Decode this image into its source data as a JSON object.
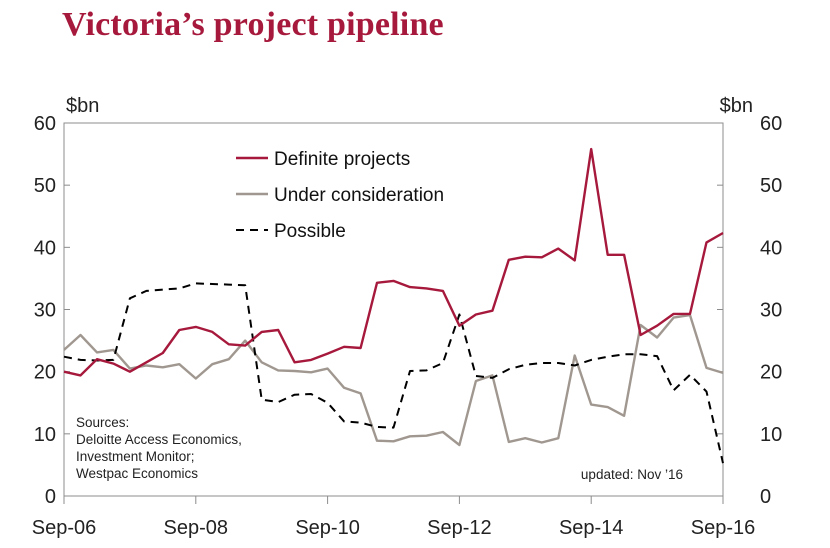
{
  "title": "Victoria’s project pipeline",
  "colors": {
    "definite": "#a6193c",
    "under": "#a09890",
    "possible": "#000000",
    "title": "#a6193c"
  },
  "chart_data": {
    "type": "line",
    "ylabel_left": "$bn",
    "ylabel_right": "$bn",
    "ylim": [
      0,
      60
    ],
    "yticks": [
      0,
      10,
      20,
      30,
      40,
      50,
      60
    ],
    "xlim": [
      0,
      40
    ],
    "xticks": [
      {
        "label": "Sep-06",
        "x": 0
      },
      {
        "label": "Sep-08",
        "x": 8
      },
      {
        "label": "Sep-10",
        "x": 16
      },
      {
        "label": "Sep-12",
        "x": 24
      },
      {
        "label": "Sep-14",
        "x": 32
      },
      {
        "label": "Sep-16",
        "x": 40
      }
    ],
    "x_unit": "quarters since Sep-06",
    "series": [
      {
        "name": "Definite projects",
        "style": "solid",
        "color": "#a6193c",
        "values": [
          20.0,
          19.4,
          22.0,
          21.3,
          20.0,
          21.5,
          23.0,
          26.7,
          27.2,
          26.4,
          24.4,
          24.2,
          26.4,
          26.7,
          21.5,
          21.9,
          22.9,
          24.0,
          23.8,
          34.3,
          34.6,
          33.6,
          33.4,
          33.0,
          27.4,
          29.2,
          29.8,
          38.0,
          38.5,
          38.4,
          39.8,
          37.9,
          55.8,
          38.8,
          38.8,
          25.9,
          27.4,
          29.3,
          29.3,
          40.8,
          42.3
        ]
      },
      {
        "name": "Under consideration",
        "style": "solid",
        "color": "#a09890",
        "values": [
          23.5,
          25.9,
          23.1,
          23.5,
          20.5,
          21.0,
          20.7,
          21.2,
          18.9,
          21.2,
          22.0,
          25.0,
          21.5,
          20.2,
          20.1,
          19.9,
          20.5,
          17.4,
          16.5,
          8.9,
          8.8,
          9.6,
          9.7,
          10.3,
          8.2,
          18.5,
          19.4,
          8.7,
          9.3,
          8.6,
          9.3,
          22.6,
          14.7,
          14.3,
          12.9,
          27.5,
          25.5,
          28.7,
          29.1,
          20.6,
          19.8
        ]
      },
      {
        "name": "Possible",
        "style": "dashed",
        "color": "#000000",
        "values": [
          22.4,
          21.9,
          21.8,
          21.9,
          31.8,
          33.0,
          33.2,
          33.4,
          34.2,
          34.1,
          34.0,
          33.9,
          15.5,
          15.1,
          16.3,
          16.4,
          15.0,
          12.0,
          11.8,
          11.1,
          11.0,
          20.1,
          20.2,
          21.4,
          29.2,
          19.3,
          19.0,
          20.4,
          21.1,
          21.4,
          21.4,
          21.0,
          21.9,
          22.4,
          22.8,
          22.8,
          22.5,
          17.0,
          19.5,
          16.8,
          5.3
        ]
      }
    ],
    "legend_position": "top-left",
    "grid": false
  },
  "sources": {
    "heading": "Sources:",
    "lines": [
      "Deloitte Access Economics,",
      "Investment Monitor;",
      "Westpac Economics"
    ]
  },
  "updated": "updated:  Nov ’16"
}
